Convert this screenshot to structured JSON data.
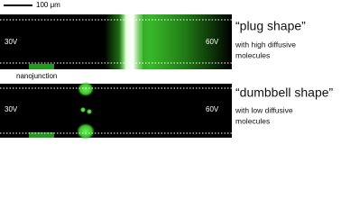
{
  "scale_bar": "100 μm",
  "nanojunction_label": "nanojunction",
  "panels": [
    {
      "left_voltage": "30V",
      "right_voltage": "60V",
      "title": "“plug shape”",
      "description": [
        "with high diffusive",
        "molecules"
      ]
    },
    {
      "left_voltage": "30V",
      "right_voltage": "60V",
      "title": "“dumbbell shape”",
      "description": [
        "with low diffusive",
        "molecules"
      ]
    }
  ]
}
